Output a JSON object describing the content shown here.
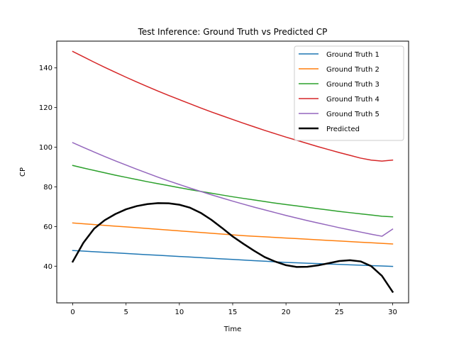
{
  "chart_data": {
    "type": "line",
    "title": "Test Inference: Ground Truth vs Predicted CP",
    "xlabel": "Time",
    "ylabel": "CP",
    "xlim": [
      -1.5,
      31.5
    ],
    "ylim": [
      21.5,
      153.5
    ],
    "x_ticks": [
      0,
      5,
      10,
      15,
      20,
      25,
      30
    ],
    "y_ticks": [
      40,
      60,
      80,
      100,
      120,
      140
    ],
    "grid": false,
    "legend_position": "top-right",
    "x": [
      0,
      1,
      2,
      3,
      4,
      5,
      6,
      7,
      8,
      9,
      10,
      11,
      12,
      13,
      14,
      15,
      16,
      17,
      18,
      19,
      20,
      21,
      22,
      23,
      24,
      25,
      26,
      27,
      28,
      29,
      30
    ],
    "series": [
      {
        "name": "Ground Truth 1",
        "color": "#1f77b4",
        "values": [
          47.9,
          47.6,
          47.3,
          47.0,
          46.7,
          46.4,
          46.1,
          45.8,
          45.5,
          45.2,
          44.9,
          44.6,
          44.3,
          44.0,
          43.7,
          43.4,
          43.1,
          42.8,
          42.5,
          42.2,
          41.9,
          41.7,
          41.5,
          41.3,
          41.1,
          40.9,
          40.7,
          40.5,
          40.3,
          40.1,
          39.9
        ]
      },
      {
        "name": "Ground Truth 2",
        "color": "#ff7f0e",
        "values": [
          61.8,
          61.4,
          61.0,
          60.6,
          60.2,
          59.8,
          59.4,
          59.0,
          58.6,
          58.2,
          57.8,
          57.4,
          57.0,
          56.6,
          56.2,
          55.8,
          55.4,
          55.1,
          54.8,
          54.5,
          54.2,
          53.9,
          53.6,
          53.3,
          53.0,
          52.7,
          52.4,
          52.1,
          51.8,
          51.5,
          51.2
        ]
      },
      {
        "name": "Ground Truth 3",
        "color": "#2ca02c",
        "values": [
          90.8,
          89.5,
          88.3,
          87.1,
          85.9,
          84.8,
          83.7,
          82.6,
          81.6,
          80.6,
          79.6,
          78.6,
          77.7,
          76.8,
          75.9,
          75.0,
          74.2,
          73.4,
          72.6,
          71.8,
          71.1,
          70.4,
          69.7,
          69.0,
          68.3,
          67.6,
          67.0,
          66.4,
          65.8,
          65.2,
          64.9
        ]
      },
      {
        "name": "Ground Truth 4",
        "color": "#d62728",
        "values": [
          148.3,
          145.6,
          142.9,
          140.3,
          137.8,
          135.3,
          132.9,
          130.6,
          128.3,
          126.1,
          124.0,
          121.9,
          119.8,
          117.8,
          115.9,
          114.0,
          112.1,
          110.3,
          108.5,
          106.8,
          105.1,
          103.5,
          101.9,
          100.3,
          98.8,
          97.3,
          95.9,
          94.5,
          93.5,
          93.0,
          93.5
        ]
      },
      {
        "name": "Ground Truth 5",
        "color": "#9467bd",
        "values": [
          102.3,
          99.9,
          97.6,
          95.3,
          93.1,
          91.0,
          88.9,
          86.9,
          84.9,
          83.0,
          81.2,
          79.4,
          77.7,
          76.0,
          74.4,
          72.8,
          71.3,
          69.8,
          68.4,
          67.0,
          65.6,
          64.3,
          63.0,
          61.8,
          60.6,
          59.4,
          58.3,
          57.2,
          56.1,
          55.1,
          58.7
        ]
      },
      {
        "name": "Predicted",
        "color": "#000000",
        "values": [
          42.3,
          51.8,
          58.9,
          63.2,
          66.3,
          68.7,
          70.3,
          71.3,
          71.8,
          71.7,
          71.0,
          69.5,
          66.9,
          63.4,
          59.3,
          55.0,
          51.3,
          47.8,
          44.6,
          42.3,
          40.5,
          39.6,
          39.7,
          40.4,
          41.5,
          42.6,
          43.0,
          42.4,
          40.0,
          35.1,
          27.1
        ]
      }
    ]
  }
}
